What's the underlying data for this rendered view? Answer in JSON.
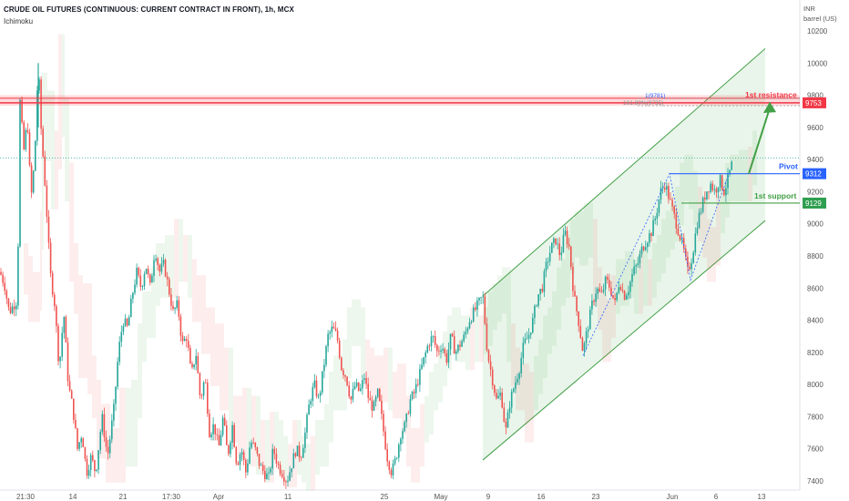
{
  "header": {
    "title": "CRUDE OIL FUTURES (CONTINUOUS: CURRENT CONTRACT IN FRONT), 1h, MCX",
    "indicator": "Ichimoku"
  },
  "axis": {
    "currency": "INR",
    "unit": "barrel (US)"
  },
  "chart_data": {
    "type": "candlestick",
    "title": "CRUDE OIL FUTURES (CONTINUOUS: CURRENT CONTRACT IN FRONT), 1h, MCX",
    "indicator": "Ichimoku",
    "y_ticks": [
      7400,
      7600,
      7800,
      8000,
      8200,
      8400,
      8600,
      8800,
      9000,
      9200,
      9400,
      9600,
      9800,
      10000,
      10200
    ],
    "ylim": [
      7360,
      10330
    ],
    "x_ticks": [
      "21:30",
      "14",
      "21",
      "17:30",
      "Apr",
      "11",
      "25",
      "May",
      "9",
      "16",
      "23",
      "Jun",
      "6",
      "13"
    ],
    "price_path": [
      [
        0,
        8700
      ],
      [
        5,
        8620
      ],
      [
        10,
        8450
      ],
      [
        18,
        8520
      ],
      [
        20,
        8900
      ],
      [
        22,
        9760
      ],
      [
        26,
        9450
      ],
      [
        30,
        9650
      ],
      [
        34,
        9150
      ],
      [
        38,
        9400
      ],
      [
        42,
        10000
      ],
      [
        45,
        9600
      ],
      [
        50,
        9200
      ],
      [
        55,
        8700
      ],
      [
        60,
        8500
      ],
      [
        65,
        8100
      ],
      [
        70,
        8450
      ],
      [
        75,
        8000
      ],
      [
        80,
        7850
      ],
      [
        85,
        7600
      ],
      [
        90,
        7700
      ],
      [
        95,
        7450
      ],
      [
        100,
        7550
      ],
      [
        105,
        7450
      ],
      [
        112,
        7800
      ],
      [
        118,
        7550
      ],
      [
        125,
        7850
      ],
      [
        130,
        8200
      ],
      [
        135,
        8400
      ],
      [
        140,
        8350
      ],
      [
        145,
        8550
      ],
      [
        150,
        8700
      ],
      [
        155,
        8600
      ],
      [
        160,
        8750
      ],
      [
        165,
        8600
      ],
      [
        170,
        8850
      ],
      [
        175,
        8700
      ],
      [
        180,
        8750
      ],
      [
        185,
        8600
      ],
      [
        190,
        8450
      ],
      [
        195,
        8500
      ],
      [
        200,
        8250
      ],
      [
        205,
        8300
      ],
      [
        210,
        8050
      ],
      [
        215,
        8200
      ],
      [
        220,
        7900
      ],
      [
        225,
        8050
      ],
      [
        230,
        7700
      ],
      [
        235,
        7750
      ],
      [
        240,
        7600
      ],
      [
        245,
        7800
      ],
      [
        250,
        7550
      ],
      [
        255,
        7750
      ],
      [
        260,
        7500
      ],
      [
        265,
        7600
      ],
      [
        270,
        7450
      ],
      [
        275,
        7650
      ],
      [
        280,
        7600
      ],
      [
        285,
        7500
      ],
      [
        290,
        7450
      ],
      [
        295,
        7420
      ],
      [
        300,
        7600
      ],
      [
        305,
        7500
      ],
      [
        310,
        7450
      ],
      [
        315,
        7400
      ],
      [
        320,
        7500
      ],
      [
        325,
        7600
      ],
      [
        330,
        7550
      ],
      [
        335,
        7700
      ],
      [
        340,
        7900
      ],
      [
        345,
        8000
      ],
      [
        350,
        7900
      ],
      [
        355,
        8100
      ],
      [
        360,
        8300
      ],
      [
        365,
        8350
      ],
      [
        370,
        8300
      ],
      [
        375,
        8100
      ],
      [
        380,
        8050
      ],
      [
        385,
        7900
      ],
      [
        390,
        8000
      ],
      [
        395,
        7950
      ],
      [
        400,
        8050
      ],
      [
        405,
        7900
      ],
      [
        410,
        7850
      ],
      [
        415,
        7950
      ],
      [
        420,
        7750
      ],
      [
        425,
        7550
      ],
      [
        430,
        7450
      ],
      [
        435,
        7550
      ],
      [
        440,
        7700
      ],
      [
        445,
        7750
      ],
      [
        450,
        7900
      ],
      [
        455,
        7950
      ],
      [
        460,
        8050
      ],
      [
        465,
        8150
      ],
      [
        470,
        8250
      ],
      [
        475,
        8300
      ],
      [
        480,
        8200
      ],
      [
        485,
        8250
      ],
      [
        490,
        8150
      ],
      [
        495,
        8300
      ],
      [
        500,
        8200
      ],
      [
        505,
        8250
      ],
      [
        510,
        8300
      ],
      [
        515,
        8400
      ],
      [
        520,
        8450
      ],
      [
        525,
        8500
      ],
      [
        530,
        8550
      ],
      [
        535,
        8200
      ],
      [
        540,
        8050
      ],
      [
        545,
        7900
      ],
      [
        550,
        7950
      ],
      [
        555,
        7700
      ],
      [
        560,
        7900
      ],
      [
        565,
        8000
      ],
      [
        570,
        8100
      ],
      [
        575,
        8250
      ],
      [
        580,
        8300
      ],
      [
        585,
        8400
      ],
      [
        590,
        8550
      ],
      [
        595,
        8600
      ],
      [
        600,
        8750
      ],
      [
        605,
        8850
      ],
      [
        610,
        8900
      ],
      [
        615,
        8800
      ],
      [
        620,
        8950
      ],
      [
        625,
        8850
      ],
      [
        630,
        8550
      ],
      [
        635,
        8400
      ],
      [
        640,
        8200
      ],
      [
        645,
        8350
      ],
      [
        650,
        8500
      ],
      [
        655,
        8600
      ],
      [
        660,
        8550
      ],
      [
        665,
        8650
      ],
      [
        670,
        8600
      ],
      [
        675,
        8500
      ],
      [
        680,
        8650
      ],
      [
        685,
        8550
      ],
      [
        690,
        8600
      ],
      [
        695,
        8700
      ],
      [
        700,
        8750
      ],
      [
        705,
        8850
      ],
      [
        710,
        8900
      ],
      [
        715,
        8950
      ],
      [
        720,
        9050
      ],
      [
        725,
        9200
      ],
      [
        730,
        9250
      ],
      [
        735,
        9150
      ],
      [
        740,
        9050
      ],
      [
        745,
        8950
      ],
      [
        750,
        8850
      ],
      [
        755,
        8700
      ],
      [
        760,
        8800
      ],
      [
        765,
        9000
      ],
      [
        770,
        9100
      ],
      [
        775,
        9200
      ],
      [
        780,
        9250
      ],
      [
        785,
        9200
      ],
      [
        790,
        9280
      ],
      [
        795,
        9200
      ],
      [
        800,
        9300
      ],
      [
        805,
        9400
      ]
    ],
    "levels": [
      {
        "name": "1st resistance",
        "value": 9753,
        "color": "#f23645"
      },
      {
        "name": "Pivot",
        "value": 9312,
        "color": "#2962ff"
      },
      {
        "name": "1st support",
        "value": 9129,
        "color": "#2e9e4f"
      }
    ],
    "fib_labels": [
      "1(9781)",
      "161.80%(9735)"
    ],
    "current_price_dotted": 9410,
    "channel": {
      "lower": [
        [
          530,
          7530
        ],
        [
          840,
          9020
        ]
      ],
      "upper": [
        [
          530,
          8550
        ],
        [
          840,
          10090
        ]
      ]
    }
  },
  "colors": {
    "up": "#26a69a",
    "down": "#ef5350",
    "channel": "#43a047",
    "resistance": "#f23645",
    "pivot": "#2962ff",
    "support": "#43a047"
  }
}
